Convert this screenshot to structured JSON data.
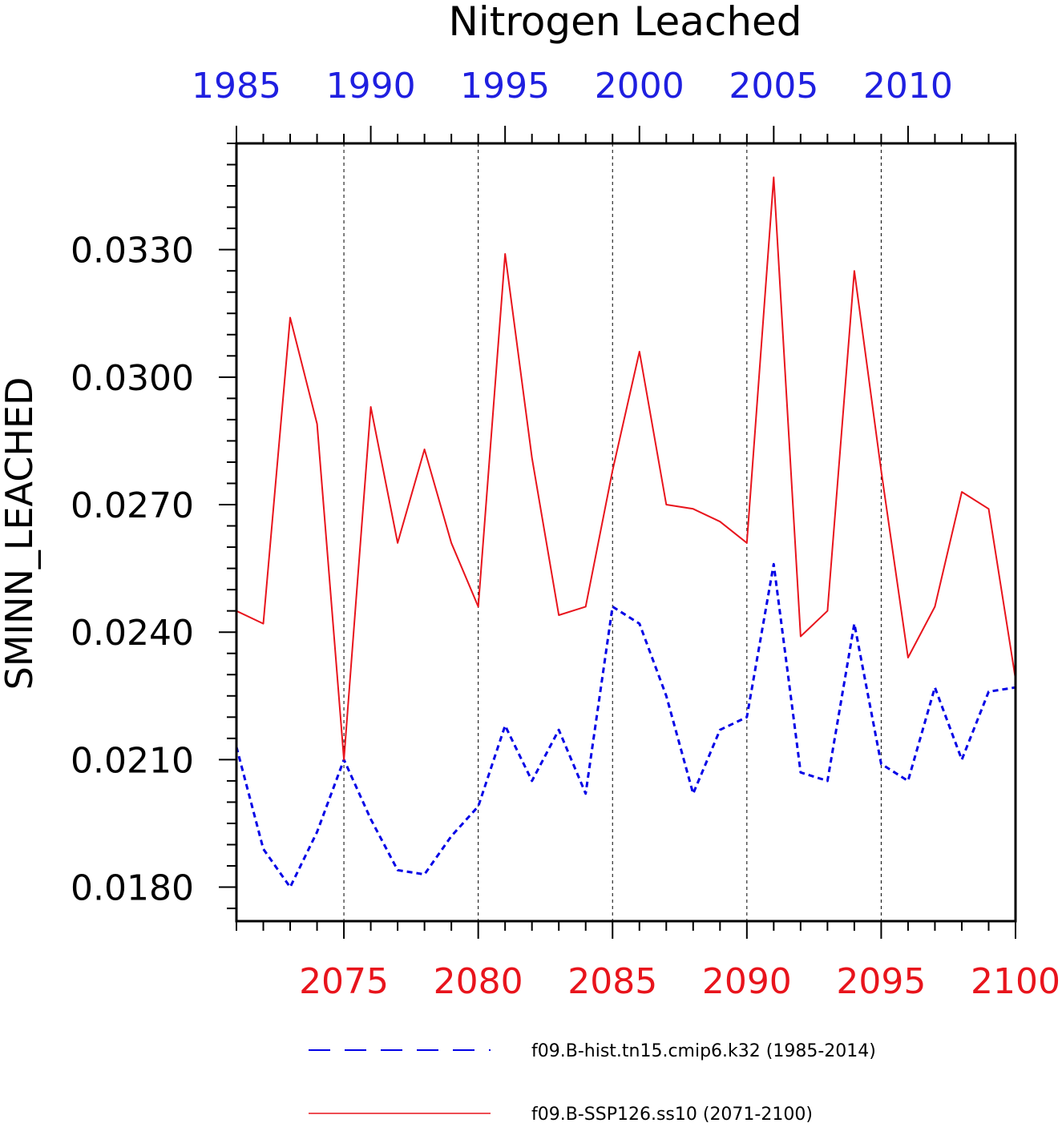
{
  "chart_data": {
    "type": "line",
    "title": "Nitrogen Leached",
    "ylabel": "SMINN_LEACHED",
    "ylim": [
      0.0172,
      0.0355
    ],
    "yticks": [
      0.018,
      0.021,
      0.024,
      0.027,
      0.03,
      0.033
    ],
    "ytick_labels": [
      "0.0180",
      "0.0210",
      "0.0240",
      "0.0270",
      "0.0300",
      "0.0330"
    ],
    "bottom_axis": {
      "range": [
        2071,
        2100
      ],
      "ticks": [
        2075,
        2080,
        2085,
        2090,
        2095,
        2100
      ],
      "tick_labels": [
        "2075",
        "2080",
        "2085",
        "2090",
        "2095",
        "2100"
      ],
      "color": "#e8141c"
    },
    "top_axis": {
      "range": [
        1985,
        2014
      ],
      "ticks": [
        1985,
        1990,
        1995,
        2000,
        2005,
        2010
      ],
      "tick_labels": [
        "1985",
        "1990",
        "1995",
        "2000",
        "2005",
        "2010"
      ],
      "color": "#1f1fe0"
    },
    "vertical_gridlines_at_bottom_axis": [
      2075,
      2080,
      2085,
      2090,
      2095
    ],
    "series": [
      {
        "name": "f09.B-hist.tn15.cmip6.k32 (1985-2014)",
        "axis": "top",
        "color": "#0000e6",
        "style": "dashed",
        "x": [
          1985,
          1986,
          1987,
          1988,
          1989,
          1990,
          1991,
          1992,
          1993,
          1994,
          1995,
          1996,
          1997,
          1998,
          1999,
          2000,
          2001,
          2002,
          2003,
          2004,
          2005,
          2006,
          2007,
          2008,
          2009,
          2010,
          2011,
          2012,
          2013,
          2014
        ],
        "values": [
          0.0213,
          0.0189,
          0.018,
          0.0193,
          0.021,
          0.0196,
          0.0184,
          0.0183,
          0.0192,
          0.0199,
          0.0218,
          0.0205,
          0.0217,
          0.0202,
          0.0246,
          0.0242,
          0.0225,
          0.0202,
          0.0217,
          0.022,
          0.0256,
          0.0207,
          0.0205,
          0.0242,
          0.0209,
          0.0205,
          0.0227,
          0.021,
          0.0226,
          0.0227
        ]
      },
      {
        "name": "f09.B-SSP126.ss10 (2071-2100)",
        "axis": "bottom",
        "color": "#e8141c",
        "style": "solid",
        "x": [
          2071,
          2072,
          2073,
          2074,
          2075,
          2076,
          2077,
          2078,
          2079,
          2080,
          2081,
          2082,
          2083,
          2084,
          2085,
          2086,
          2087,
          2088,
          2089,
          2090,
          2091,
          2092,
          2093,
          2094,
          2095,
          2096,
          2097,
          2098,
          2099,
          2100
        ],
        "values": [
          0.0245,
          0.0242,
          0.0314,
          0.0289,
          0.021,
          0.0293,
          0.0261,
          0.0283,
          0.0261,
          0.0246,
          0.0329,
          0.0281,
          0.0244,
          0.0246,
          0.0278,
          0.0306,
          0.027,
          0.0269,
          0.0266,
          0.0261,
          0.0347,
          0.0239,
          0.0245,
          0.0325,
          0.0278,
          0.0234,
          0.0246,
          0.0273,
          0.0269,
          0.0229
        ]
      }
    ]
  }
}
